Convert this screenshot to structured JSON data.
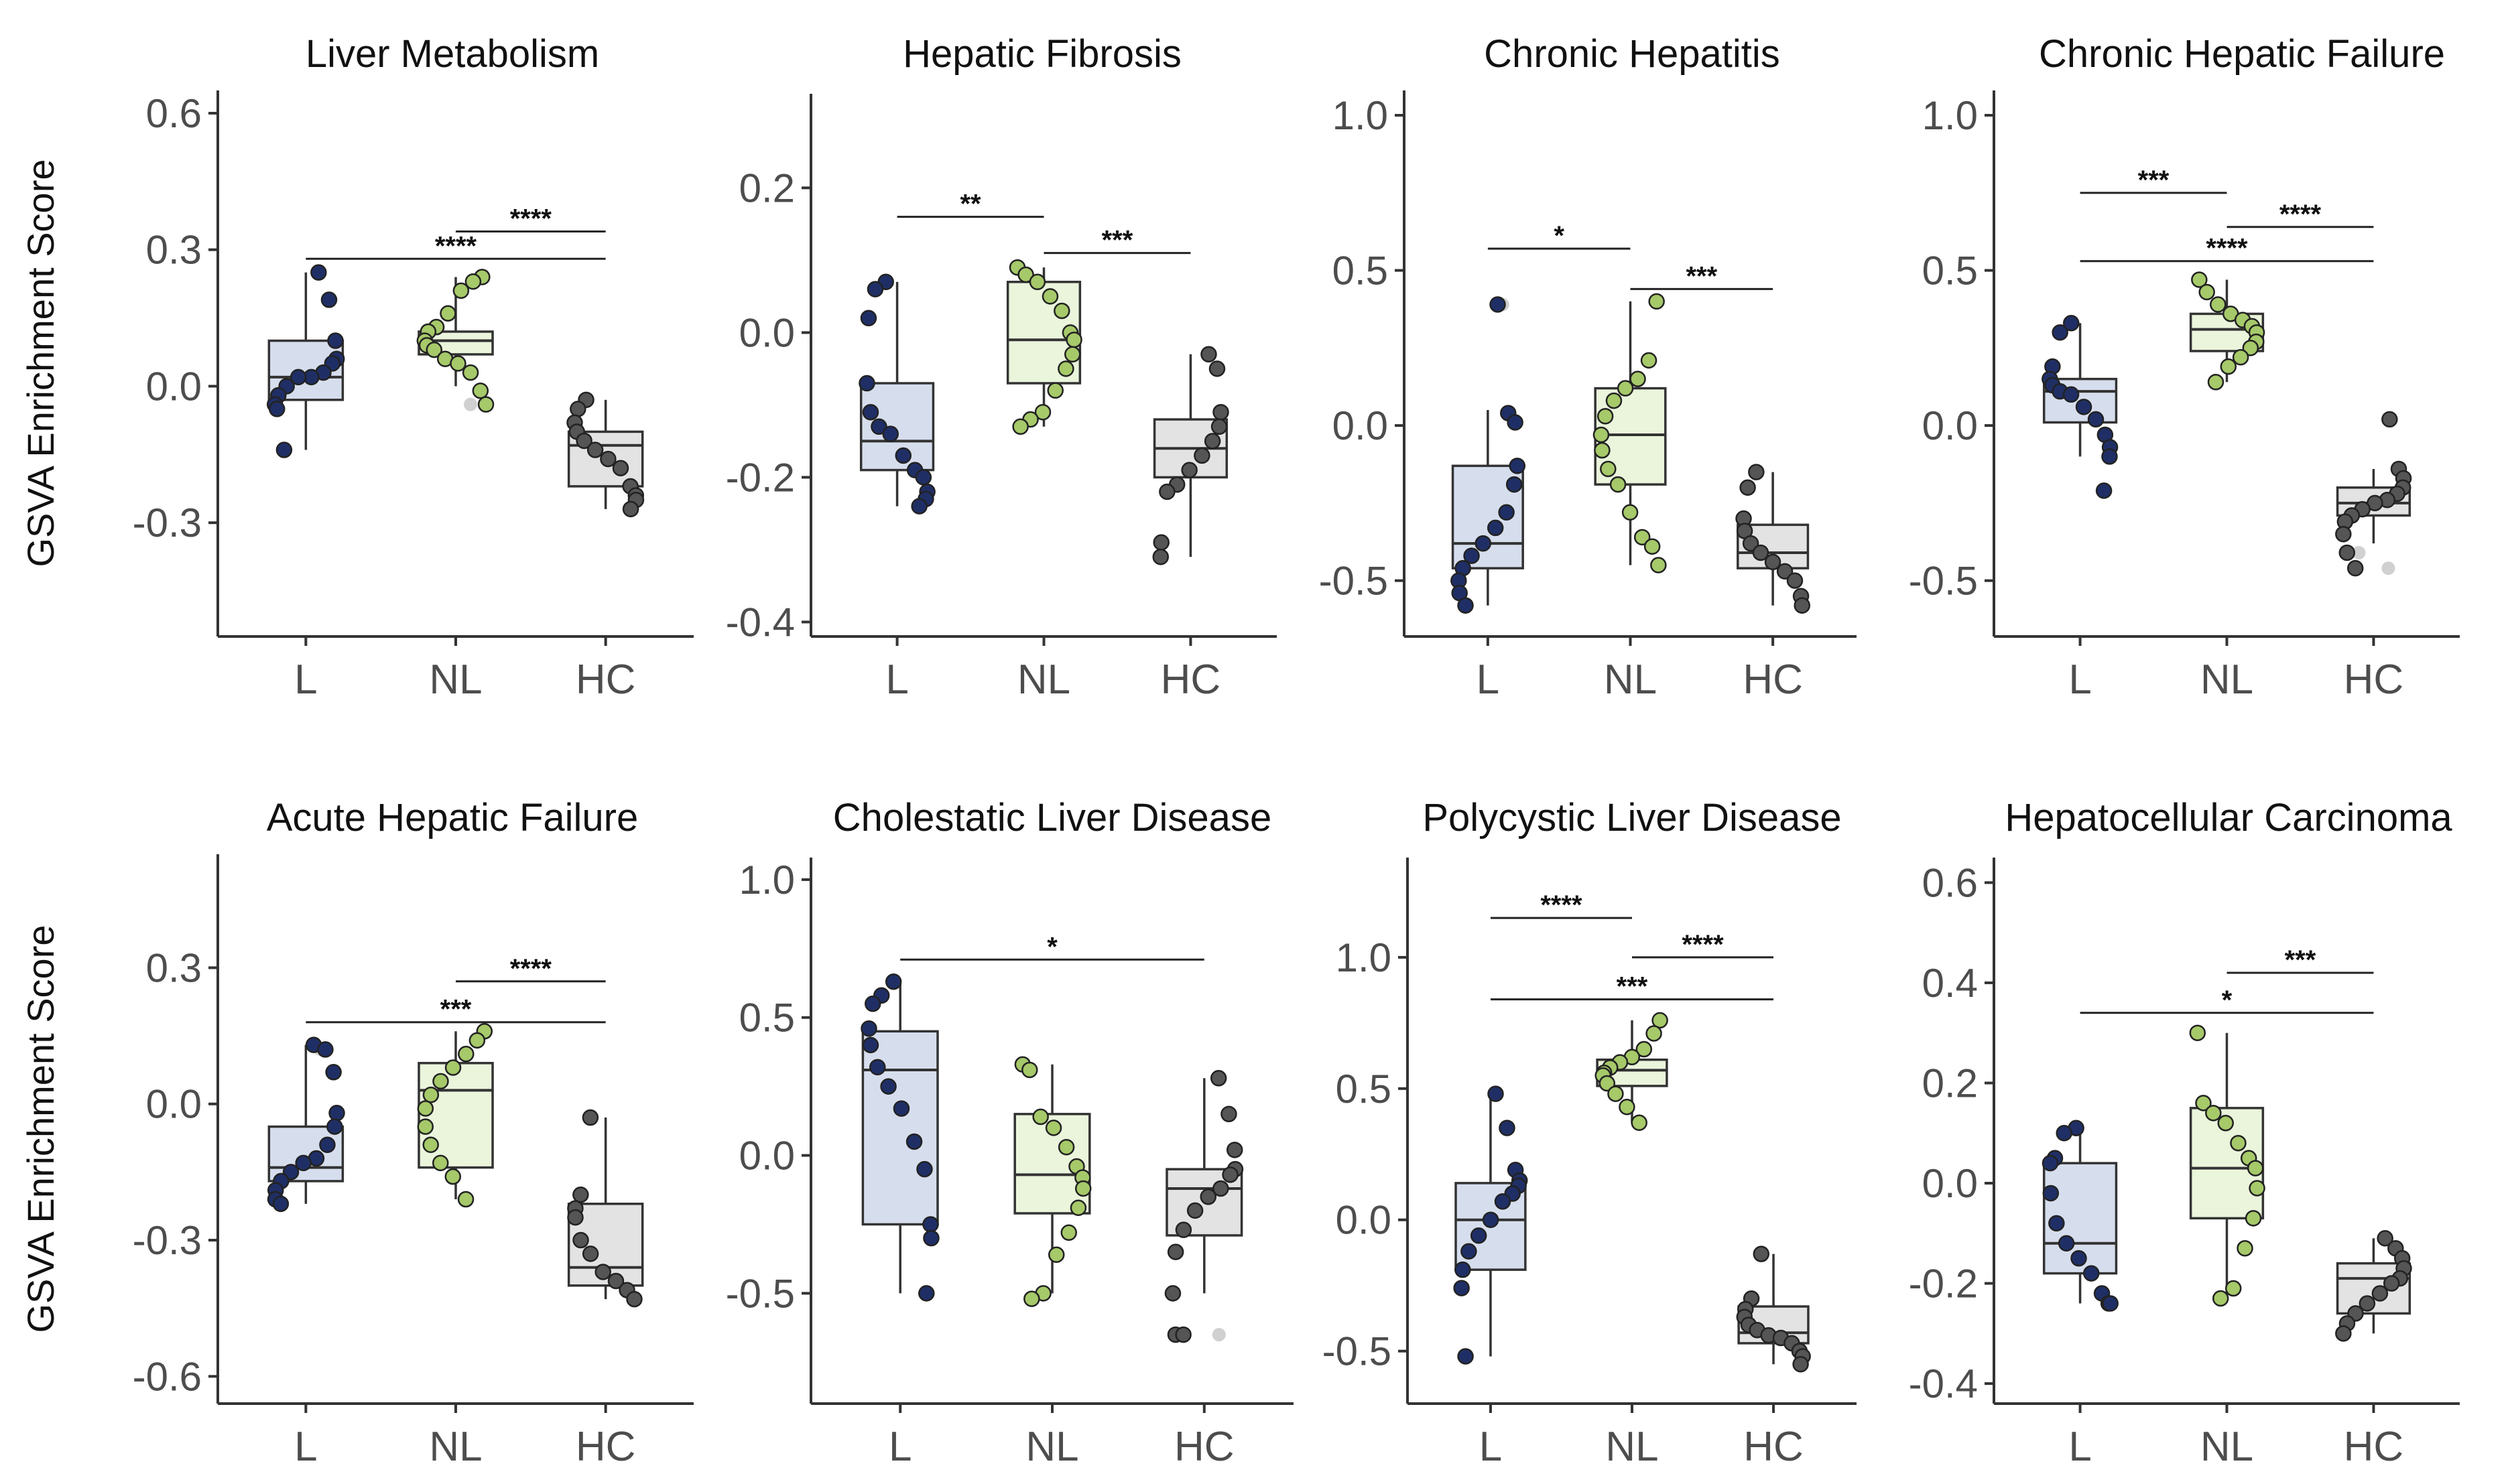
{
  "figure": {
    "y_axis_title": "GSVA Enrichment Score",
    "colors": {
      "L": "#d6deee",
      "NL": "#eaf5dc",
      "HC": "#e3e3e3"
    },
    "point_colors": {
      "L": "#1f2f66",
      "NL": "#a6c96a",
      "HC": "#555555",
      "outlier": "#d0d0d0"
    }
  },
  "chart_data": [
    {
      "type": "box",
      "title": "Liver Metabolism",
      "ylabel": "GSVA Enrichment Score",
      "categories": [
        "L",
        "NL",
        "HC"
      ],
      "ylim": [
        -0.55,
        0.65
      ],
      "yticks": [
        0.6,
        0.3,
        0.0,
        -0.3
      ],
      "ytick_labels": [
        "0.6",
        "0.3",
        "0.0",
        "-0.3"
      ],
      "boxes": [
        {
          "q1": -0.03,
          "median": 0.02,
          "q3": 0.1,
          "whisker_low": -0.14,
          "whisker_high": 0.25
        },
        {
          "q1": 0.07,
          "median": 0.1,
          "q3": 0.12,
          "whisker_low": 0.0,
          "whisker_high": 0.24
        },
        {
          "q1": -0.22,
          "median": -0.13,
          "q3": -0.1,
          "whisker_low": -0.27,
          "whisker_high": -0.03
        }
      ],
      "points": [
        [
          0.25,
          0.19,
          0.1,
          0.06,
          0.05,
          0.03,
          0.02,
          0.02,
          0.0,
          -0.02,
          -0.04,
          -0.05,
          -0.14
        ],
        [
          0.24,
          0.23,
          0.21,
          0.16,
          0.13,
          0.12,
          0.1,
          0.09,
          0.08,
          0.06,
          0.05,
          0.03,
          -0.01,
          -0.04
        ],
        [
          -0.03,
          -0.05,
          -0.08,
          -0.1,
          -0.12,
          -0.14,
          -0.16,
          -0.18,
          -0.22,
          -0.24,
          -0.25,
          -0.27
        ]
      ],
      "outliers": [
        [],
        [
          -0.04
        ],
        []
      ],
      "comparisons": [
        {
          "from": "NL",
          "to": "HC",
          "y": 0.34,
          "label": "****"
        },
        {
          "from": "L",
          "to": "HC",
          "y": 0.28,
          "label": "****"
        }
      ]
    },
    {
      "type": "box",
      "title": "Hepatic Fibrosis",
      "ylabel": "",
      "categories": [
        "L",
        "NL",
        "HC"
      ],
      "ylim": [
        -0.42,
        0.33
      ],
      "yticks": [
        0.2,
        0.0,
        -0.2,
        -0.4
      ],
      "ytick_labels": [
        "0.2",
        "0.0",
        "-0.2",
        "-0.4"
      ],
      "boxes": [
        {
          "q1": -0.19,
          "median": -0.15,
          "q3": -0.07,
          "whisker_low": -0.24,
          "whisker_high": 0.07
        },
        {
          "q1": -0.07,
          "median": -0.01,
          "q3": 0.07,
          "whisker_low": -0.13,
          "whisker_high": 0.09
        },
        {
          "q1": -0.2,
          "median": -0.16,
          "q3": -0.12,
          "whisker_low": -0.31,
          "whisker_high": -0.03
        }
      ],
      "points": [
        [
          0.07,
          0.06,
          0.02,
          -0.07,
          -0.11,
          -0.13,
          -0.14,
          -0.17,
          -0.19,
          -0.2,
          -0.22,
          -0.23,
          -0.24
        ],
        [
          0.09,
          0.08,
          0.07,
          0.05,
          0.03,
          0.0,
          -0.01,
          -0.03,
          -0.05,
          -0.08,
          -0.11,
          -0.12,
          -0.13
        ],
        [
          -0.03,
          -0.05,
          -0.11,
          -0.13,
          -0.15,
          -0.17,
          -0.19,
          -0.21,
          -0.22,
          -0.29,
          -0.31
        ]
      ],
      "outliers": [
        [],
        [],
        []
      ],
      "comparisons": [
        {
          "from": "L",
          "to": "NL",
          "y": 0.16,
          "label": "**"
        },
        {
          "from": "NL",
          "to": "HC",
          "y": 0.11,
          "label": "***"
        }
      ]
    },
    {
      "type": "box",
      "title": "Chronic Hepatitis",
      "ylabel": "",
      "categories": [
        "L",
        "NL",
        "HC"
      ],
      "ylim": [
        -0.68,
        1.08
      ],
      "yticks": [
        1.0,
        0.5,
        0.0,
        -0.5
      ],
      "ytick_labels": [
        "1.0",
        "0.5",
        "0.0",
        "-0.5"
      ],
      "boxes": [
        {
          "q1": -0.46,
          "median": -0.38,
          "q3": -0.13,
          "whisker_low": -0.58,
          "whisker_high": 0.05
        },
        {
          "q1": -0.19,
          "median": -0.03,
          "q3": 0.12,
          "whisker_low": -0.45,
          "whisker_high": 0.4
        },
        {
          "q1": -0.46,
          "median": -0.41,
          "q3": -0.32,
          "whisker_low": -0.58,
          "whisker_high": -0.15
        }
      ],
      "points": [
        [
          0.39,
          0.04,
          0.01,
          -0.13,
          -0.19,
          -0.28,
          -0.33,
          -0.38,
          -0.42,
          -0.46,
          -0.5,
          -0.54,
          -0.58
        ],
        [
          0.4,
          0.21,
          0.15,
          0.12,
          0.08,
          0.03,
          -0.03,
          -0.08,
          -0.14,
          -0.19,
          -0.28,
          -0.36,
          -0.39,
          -0.45
        ],
        [
          -0.15,
          -0.2,
          -0.3,
          -0.34,
          -0.38,
          -0.41,
          -0.44,
          -0.47,
          -0.5,
          -0.55,
          -0.58
        ]
      ],
      "outliers": [
        [
          0.39
        ],
        [],
        []
      ],
      "comparisons": [
        {
          "from": "L",
          "to": "NL",
          "y": 0.57,
          "label": "*"
        },
        {
          "from": "NL",
          "to": "HC",
          "y": 0.44,
          "label": "***"
        }
      ]
    },
    {
      "type": "box",
      "title": "Chronic Hepatic Failure",
      "ylabel": "",
      "categories": [
        "L",
        "NL",
        "HC"
      ],
      "ylim": [
        -0.68,
        1.08
      ],
      "yticks": [
        1.0,
        0.5,
        0.0,
        -0.5
      ],
      "ytick_labels": [
        "1.0",
        "0.5",
        "0.0",
        "-0.5"
      ],
      "boxes": [
        {
          "q1": 0.01,
          "median": 0.11,
          "q3": 0.15,
          "whisker_low": -0.1,
          "whisker_high": 0.33
        },
        {
          "q1": 0.24,
          "median": 0.31,
          "q3": 0.36,
          "whisker_low": 0.14,
          "whisker_high": 0.47
        },
        {
          "q1": -0.29,
          "median": -0.25,
          "q3": -0.2,
          "whisker_low": -0.38,
          "whisker_high": -0.14
        }
      ],
      "points": [
        [
          0.33,
          0.3,
          0.19,
          0.15,
          0.13,
          0.11,
          0.1,
          0.06,
          0.02,
          -0.03,
          -0.07,
          -0.1,
          -0.21
        ],
        [
          0.47,
          0.43,
          0.39,
          0.36,
          0.34,
          0.32,
          0.3,
          0.27,
          0.25,
          0.22,
          0.19,
          0.14
        ],
        [
          0.02,
          -0.14,
          -0.17,
          -0.2,
          -0.22,
          -0.24,
          -0.25,
          -0.27,
          -0.29,
          -0.31,
          -0.35,
          -0.41,
          -0.46
        ]
      ],
      "outliers": [
        [],
        [],
        [
          0.02,
          -0.41,
          -0.46
        ]
      ],
      "comparisons": [
        {
          "from": "L",
          "to": "NL",
          "y": 0.75,
          "label": "***"
        },
        {
          "from": "NL",
          "to": "HC",
          "y": 0.64,
          "label": "****"
        },
        {
          "from": "L",
          "to": "HC",
          "y": 0.53,
          "label": "****"
        }
      ]
    },
    {
      "type": "box",
      "title": "Acute Hepatic Failure",
      "ylabel": "GSVA Enrichment Score",
      "categories": [
        "L",
        "NL",
        "HC"
      ],
      "ylim": [
        -0.66,
        0.55
      ],
      "yticks": [
        0.3,
        0.0,
        -0.3,
        -0.6
      ],
      "ytick_labels": [
        "0.3",
        "0.0",
        "-0.3",
        "-0.6"
      ],
      "boxes": [
        {
          "q1": -0.17,
          "median": -0.14,
          "q3": -0.05,
          "whisker_low": -0.22,
          "whisker_high": 0.13
        },
        {
          "q1": -0.14,
          "median": 0.03,
          "q3": 0.09,
          "whisker_low": -0.21,
          "whisker_high": 0.16
        },
        {
          "q1": -0.4,
          "median": -0.36,
          "q3": -0.22,
          "whisker_low": -0.43,
          "whisker_high": -0.03
        }
      ],
      "points": [
        [
          0.13,
          0.12,
          0.07,
          -0.02,
          -0.05,
          -0.09,
          -0.12,
          -0.13,
          -0.15,
          -0.17,
          -0.19,
          -0.21,
          -0.22
        ],
        [
          0.16,
          0.14,
          0.11,
          0.08,
          0.05,
          0.02,
          -0.01,
          -0.05,
          -0.09,
          -0.13,
          -0.16,
          -0.21
        ],
        [
          -0.03,
          -0.2,
          -0.23,
          -0.25,
          -0.3,
          -0.33,
          -0.37,
          -0.39,
          -0.41,
          -0.43
        ]
      ],
      "outliers": [
        [
          0.12
        ],
        [],
        []
      ],
      "comparisons": [
        {
          "from": "NL",
          "to": "HC",
          "y": 0.27,
          "label": "****"
        },
        {
          "from": "L",
          "to": "HC",
          "y": 0.18,
          "label": "***"
        }
      ]
    },
    {
      "type": "box",
      "title": "Cholestatic Liver Disease",
      "ylabel": "",
      "categories": [
        "L",
        "NL",
        "HC"
      ],
      "ylim": [
        -0.9,
        1.08
      ],
      "yticks": [
        1.0,
        0.5,
        0.0,
        -0.5
      ],
      "ytick_labels": [
        "1.0",
        "0.5",
        "0.0",
        "-0.5"
      ],
      "boxes": [
        {
          "q1": -0.25,
          "median": 0.31,
          "q3": 0.45,
          "whisker_low": -0.5,
          "whisker_high": 0.63
        },
        {
          "q1": -0.21,
          "median": -0.07,
          "q3": 0.15,
          "whisker_low": -0.5,
          "whisker_high": 0.33
        },
        {
          "q1": -0.29,
          "median": -0.12,
          "q3": -0.05,
          "whisker_low": -0.5,
          "whisker_high": 0.28
        }
      ],
      "points": [
        [
          0.63,
          0.58,
          0.55,
          0.46,
          0.4,
          0.32,
          0.25,
          0.17,
          0.05,
          -0.05,
          -0.25,
          -0.3,
          -0.5
        ],
        [
          0.33,
          0.31,
          0.14,
          0.1,
          0.03,
          -0.04,
          -0.08,
          -0.12,
          -0.19,
          -0.28,
          -0.36,
          -0.5,
          -0.52
        ],
        [
          0.28,
          0.15,
          0.02,
          -0.05,
          -0.07,
          -0.12,
          -0.15,
          -0.2,
          -0.27,
          -0.35,
          -0.5,
          -0.65,
          -0.65
        ]
      ],
      "outliers": [
        [],
        [],
        [
          -0.65
        ]
      ],
      "comparisons": [
        {
          "from": "L",
          "to": "HC",
          "y": 0.71,
          "label": "*"
        }
      ]
    },
    {
      "type": "box",
      "title": "Polycystic Liver Disease",
      "ylabel": "",
      "categories": [
        "L",
        "NL",
        "HC"
      ],
      "ylim": [
        -0.7,
        1.38
      ],
      "yticks": [
        1.0,
        0.5,
        0.0,
        -0.5
      ],
      "ytick_labels": [
        "1.0",
        "0.5",
        "0.0",
        "-0.5"
      ],
      "boxes": [
        {
          "q1": -0.19,
          "median": 0.0,
          "q3": 0.14,
          "whisker_low": -0.52,
          "whisker_high": 0.48
        },
        {
          "q1": 0.51,
          "median": 0.57,
          "q3": 0.61,
          "whisker_low": 0.37,
          "whisker_high": 0.76
        },
        {
          "q1": -0.47,
          "median": -0.43,
          "q3": -0.33,
          "whisker_low": -0.55,
          "whisker_high": -0.13
        }
      ],
      "points": [
        [
          0.48,
          0.35,
          0.19,
          0.15,
          0.13,
          0.1,
          0.07,
          0.0,
          -0.06,
          -0.12,
          -0.19,
          -0.26,
          -0.52
        ],
        [
          0.76,
          0.71,
          0.65,
          0.62,
          0.6,
          0.58,
          0.56,
          0.55,
          0.52,
          0.48,
          0.43,
          0.37
        ],
        [
          -0.13,
          -0.3,
          -0.34,
          -0.37,
          -0.4,
          -0.42,
          -0.44,
          -0.45,
          -0.47,
          -0.5,
          -0.52,
          -0.55
        ]
      ],
      "outliers": [
        [],
        [],
        []
      ],
      "comparisons": [
        {
          "from": "L",
          "to": "NL",
          "y": 1.15,
          "label": "****"
        },
        {
          "from": "NL",
          "to": "HC",
          "y": 1.0,
          "label": "****"
        },
        {
          "from": "L",
          "to": "HC",
          "y": 0.84,
          "label": "***"
        }
      ]
    },
    {
      "type": "box",
      "title": "Hepatocellular Carcinoma",
      "ylabel": "",
      "categories": [
        "L",
        "NL",
        "HC"
      ],
      "ylim": [
        -0.44,
        0.65
      ],
      "yticks": [
        0.6,
        0.4,
        0.2,
        0.0,
        -0.2,
        -0.4
      ],
      "ytick_labels": [
        "0.6",
        "0.4",
        "0.2",
        "0.0",
        "-0.2",
        "-0.4"
      ],
      "boxes": [
        {
          "q1": -0.18,
          "median": -0.12,
          "q3": 0.04,
          "whisker_low": -0.24,
          "whisker_high": 0.11
        },
        {
          "q1": -0.07,
          "median": 0.03,
          "q3": 0.15,
          "whisker_low": -0.23,
          "whisker_high": 0.3
        },
        {
          "q1": -0.26,
          "median": -0.19,
          "q3": -0.16,
          "whisker_low": -0.3,
          "whisker_high": -0.11
        }
      ],
      "points": [
        [
          0.11,
          0.1,
          0.05,
          0.04,
          -0.02,
          -0.08,
          -0.12,
          -0.15,
          -0.18,
          -0.22,
          -0.24,
          -0.24
        ],
        [
          0.3,
          0.16,
          0.14,
          0.12,
          0.08,
          0.05,
          0.03,
          -0.01,
          -0.07,
          -0.13,
          -0.21,
          -0.23
        ],
        [
          -0.11,
          -0.13,
          -0.15,
          -0.17,
          -0.19,
          -0.2,
          -0.22,
          -0.24,
          -0.26,
          -0.28,
          -0.3
        ]
      ],
      "outliers": [
        [],
        [],
        []
      ],
      "comparisons": [
        {
          "from": "NL",
          "to": "HC",
          "y": 0.42,
          "label": "***"
        },
        {
          "from": "L",
          "to": "HC",
          "y": 0.34,
          "label": "*"
        }
      ]
    }
  ]
}
